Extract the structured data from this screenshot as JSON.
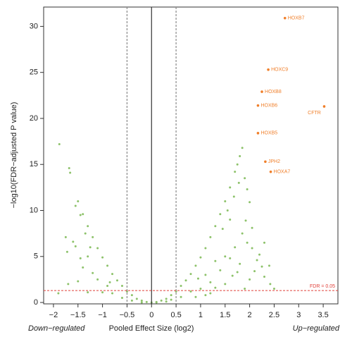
{
  "chart_data": {
    "type": "scatter",
    "x_label": "Pooled Effect Size (log2)",
    "y_label": "−log10(FDR−adjusted P value)",
    "left_note": "Down−regulated",
    "right_note": "Up−regulated",
    "xlim": [
      -2.2,
      3.8
    ],
    "ylim": [
      -0.15,
      32.1
    ],
    "xticks": [
      {
        "value": -2,
        "label": "−2"
      },
      {
        "value": -1.5,
        "label": "−1.5"
      },
      {
        "value": -1,
        "label": "−1"
      },
      {
        "value": -0.5,
        "label": "−0.5"
      },
      0,
      0.5,
      1,
      1.5,
      2,
      2.5,
      3,
      3.5
    ],
    "yticks": [
      0,
      5,
      10,
      15,
      20,
      25,
      30
    ],
    "vlines": [
      {
        "value": -0.5,
        "color": "#888888",
        "dash": true
      },
      {
        "value": 0,
        "color": "#333333",
        "dash": false
      },
      {
        "value": 0.5,
        "color": "#888888",
        "dash": true
      }
    ],
    "hline": {
      "value": 1.3,
      "label": "FDR = 0.05",
      "color": "#e0403a"
    },
    "series": [
      {
        "color": "#8dc26a",
        "x": [
          -1.5,
          -1.4,
          -1.3,
          -1.2,
          -1.1,
          -1.0,
          -0.9,
          -0.8,
          -0.7,
          -0.6,
          -0.5,
          -0.4,
          -0.3,
          -0.2,
          -0.1,
          0,
          0.1,
          0.2,
          0.3,
          0.4,
          0.5,
          0.6,
          0.7,
          0.8,
          0.9,
          1.0,
          1.1,
          1.2,
          1.3,
          1.4,
          1.5,
          1.6,
          1.7,
          1.75,
          1.8,
          1.85,
          -1.88,
          -1.68,
          -1.66,
          -1.75,
          -1.6,
          -1.55,
          -1.72,
          -1.3,
          -1.45,
          1.9,
          1.95,
          2.0,
          1.92,
          2.05,
          1.85,
          1.95,
          2.3,
          2.05,
          2.2,
          1.7,
          1.6,
          1.8,
          2.4,
          2.25,
          2.3,
          2.42,
          2.1,
          1.4,
          1.2,
          -1.2,
          -1.1,
          -0.9,
          1.0,
          0.8,
          -0.8,
          0.6,
          -0.6,
          1.3,
          -1.3,
          1.5,
          -1.5,
          1.65,
          -1.0,
          0.9,
          -0.4,
          0.3,
          0.4,
          1.1,
          -1.4,
          1.5,
          1.75,
          2.0,
          1.3,
          1.1,
          0.95,
          -0.85,
          -1.25,
          -1.35,
          1.45,
          1.6,
          1.55,
          1.68,
          1.78,
          -1.45,
          -1.55,
          2.15,
          1.9,
          -1.7,
          -1.9,
          2.5,
          1.2,
          -0.2,
          0.1
        ],
        "y": [
          11.0,
          9.6,
          8.3,
          7.1,
          5.9,
          4.9,
          4.0,
          3.1,
          2.4,
          1.8,
          1.2,
          0.8,
          0.4,
          0.2,
          0.05,
          0,
          0.05,
          0.2,
          0.4,
          0.8,
          1.2,
          1.8,
          2.4,
          3.1,
          4.0,
          4.9,
          5.9,
          7.1,
          8.3,
          9.6,
          11.0,
          12.5,
          14.2,
          15.0,
          15.9,
          16.8,
          17.2,
          14.6,
          14.1,
          7.1,
          6.6,
          6.1,
          5.5,
          5.0,
          4.8,
          13.5,
          12.3,
          10.9,
          8.9,
          8.1,
          7.5,
          6.5,
          6.5,
          5.9,
          5.2,
          6.0,
          4.8,
          4.2,
          4.0,
          3.9,
          2.8,
          2.0,
          3.4,
          3.5,
          2.2,
          3.2,
          2.5,
          1.8,
          1.5,
          1.2,
          1.0,
          0.6,
          0.5,
          1.6,
          1.1,
          2.0,
          2.3,
          2.9,
          1.1,
          0.6,
          0.2,
          0.1,
          0.3,
          0.8,
          3.8,
          5.0,
          3.3,
          2.5,
          4.5,
          3.0,
          2.6,
          2.2,
          6.0,
          7.5,
          8.0,
          9.0,
          10.0,
          11.5,
          13.0,
          9.5,
          10.5,
          4.6,
          1.5,
          2.0,
          1.0,
          1.5,
          1.0,
          0.0,
          0.0
        ]
      },
      {
        "color": "#f07f2a",
        "x": [
          2.72,
          2.38,
          2.25,
          2.17,
          3.52,
          2.17,
          2.32,
          2.43
        ],
        "y": [
          30.9,
          25.3,
          22.9,
          21.4,
          21.3,
          18.4,
          15.3,
          14.2
        ],
        "labels": [
          "HOXB7",
          "HOXC9",
          "HOXB8",
          "HOXB6",
          "CFTR",
          "HOXB5",
          "JPH2",
          "HOXA7"
        ]
      }
    ]
  }
}
